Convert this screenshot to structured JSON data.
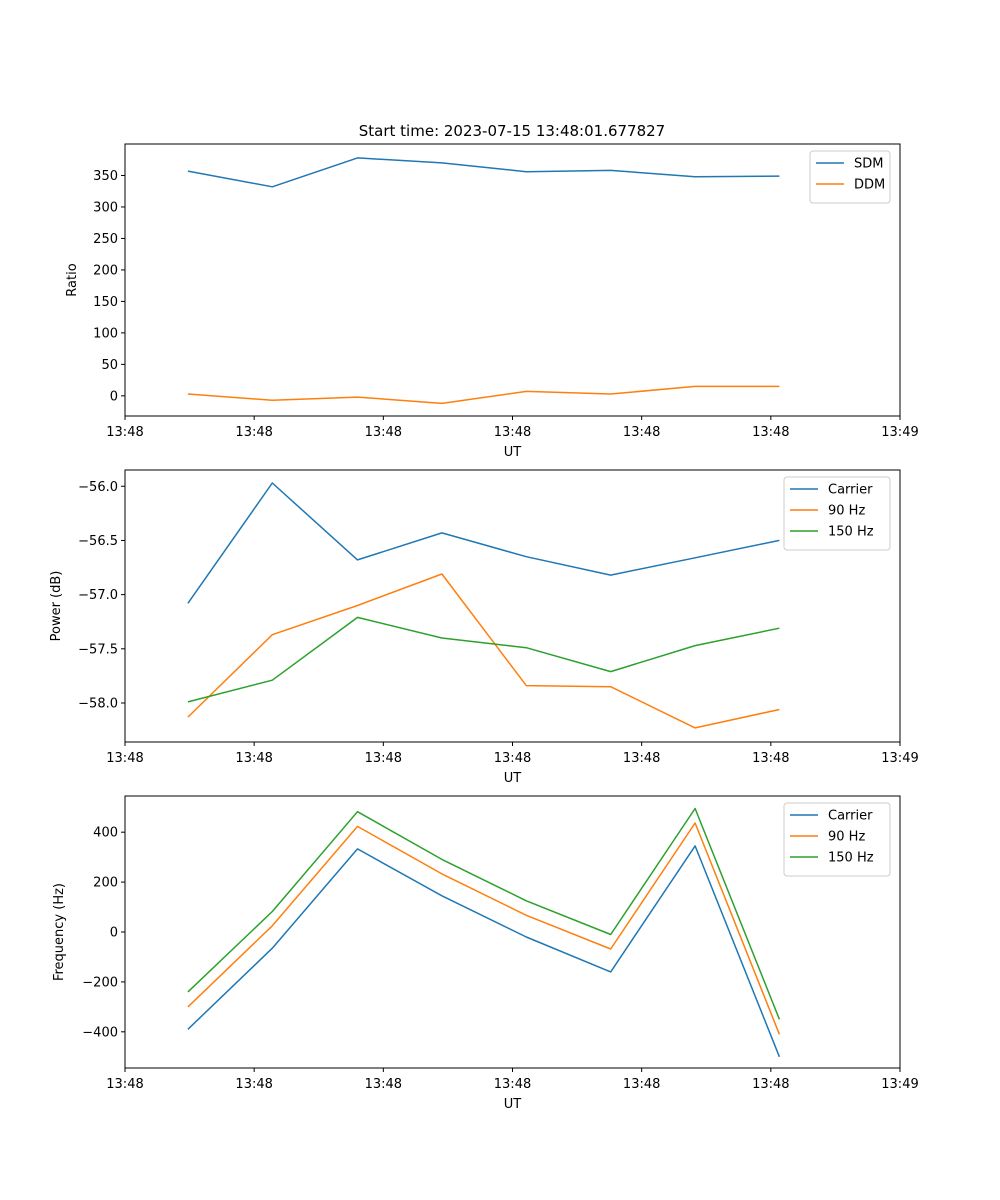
{
  "figure_title": "Start time: 2023-07-15 13:48:01.677827",
  "chart_data": [
    {
      "type": "line",
      "title": "Start time: 2023-07-15 13:48:01.677827",
      "xlabel": "UT",
      "ylabel": "Ratio",
      "xlim": [
        0,
        9
      ],
      "ylim": [
        -32,
        400
      ],
      "x_tick_positions": [
        0,
        1.5,
        3,
        4.5,
        6,
        7.5,
        9
      ],
      "x_tick_labels": [
        "13:48",
        "13:48",
        "13:48",
        "13:48",
        "13:48",
        "13:48",
        "13:49"
      ],
      "y_ticks": [
        0,
        50,
        100,
        150,
        200,
        250,
        300,
        350
      ],
      "y_tick_labels": [
        "0",
        "50",
        "100",
        "150",
        "200",
        "250",
        "300",
        "350"
      ],
      "legend_position": "top-right",
      "x": [
        0.73,
        1.71,
        2.7,
        3.68,
        4.66,
        5.64,
        6.62,
        7.6
      ],
      "series": [
        {
          "name": "SDM",
          "color": "#1f77b4",
          "values": [
            357,
            332,
            378,
            370,
            356,
            358,
            348,
            349
          ]
        },
        {
          "name": "DDM",
          "color": "#ff7f0e",
          "values": [
            3,
            -7,
            -2,
            -12,
            7,
            3,
            15,
            15
          ]
        }
      ]
    },
    {
      "type": "line",
      "title": "",
      "xlabel": "UT",
      "ylabel": "Power (dB)",
      "xlim": [
        0,
        9
      ],
      "ylim": [
        -58.36,
        -55.85
      ],
      "x_tick_positions": [
        0,
        1.5,
        3,
        4.5,
        6,
        7.5,
        9
      ],
      "x_tick_labels": [
        "13:48",
        "13:48",
        "13:48",
        "13:48",
        "13:48",
        "13:48",
        "13:49"
      ],
      "y_ticks": [
        -58.0,
        -57.5,
        -57.0,
        -56.5,
        -56.0
      ],
      "y_tick_labels": [
        "−58.0",
        "−57.5",
        "−57.0",
        "−56.5",
        "−56.0"
      ],
      "legend_position": "top-right",
      "x": [
        0.73,
        1.71,
        2.7,
        3.68,
        4.66,
        5.64,
        6.62,
        7.6
      ],
      "series": [
        {
          "name": "Carrier",
          "color": "#1f77b4",
          "values": [
            -57.08,
            -55.97,
            -56.68,
            -56.43,
            -56.65,
            -56.82,
            -56.66,
            -56.5
          ]
        },
        {
          "name": "90 Hz",
          "color": "#ff7f0e",
          "values": [
            -58.13,
            -57.37,
            -57.1,
            -56.81,
            -57.84,
            -57.85,
            -58.23,
            -58.06
          ]
        },
        {
          "name": "150 Hz",
          "color": "#2ca02c",
          "values": [
            -57.99,
            -57.79,
            -57.21,
            -57.4,
            -57.49,
            -57.71,
            -57.47,
            -57.31
          ]
        }
      ]
    },
    {
      "type": "line",
      "title": "",
      "xlabel": "UT",
      "ylabel": "Frequency (Hz)",
      "xlim": [
        0,
        9
      ],
      "ylim": [
        -545,
        545
      ],
      "x_tick_positions": [
        0,
        1.5,
        3,
        4.5,
        6,
        7.5,
        9
      ],
      "x_tick_labels": [
        "13:48",
        "13:48",
        "13:48",
        "13:48",
        "13:48",
        "13:48",
        "13:49"
      ],
      "y_ticks": [
        -400,
        -200,
        0,
        200,
        400
      ],
      "y_tick_labels": [
        "−400",
        "−200",
        "0",
        "200",
        "400"
      ],
      "legend_position": "top-right",
      "x": [
        0.73,
        1.71,
        2.7,
        3.68,
        4.66,
        5.64,
        6.62,
        7.6
      ],
      "series": [
        {
          "name": "Carrier",
          "color": "#1f77b4",
          "values": [
            -390,
            -65,
            333,
            145,
            -20,
            -160,
            345,
            -500
          ]
        },
        {
          "name": "90 Hz",
          "color": "#ff7f0e",
          "values": [
            -300,
            25,
            423,
            233,
            67,
            -68,
            437,
            -410
          ]
        },
        {
          "name": "150 Hz",
          "color": "#2ca02c",
          "values": [
            -240,
            82,
            482,
            291,
            125,
            -10,
            495,
            -350
          ]
        }
      ]
    }
  ]
}
